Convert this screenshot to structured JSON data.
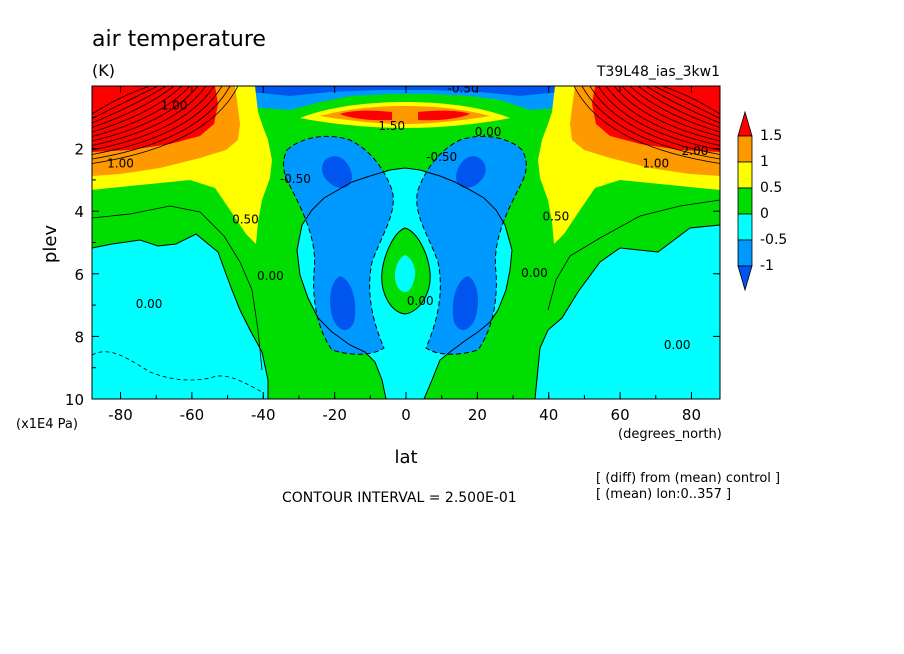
{
  "chart_data": {
    "type": "heatmap",
    "subtype": "filled-contour",
    "title": "air temperature",
    "units": "(K)",
    "run_label": "T39L48_ias_3kw1",
    "xlabel": "lat",
    "x_units": "(degrees_north)",
    "ylabel": "plev",
    "y_units": "(x1E4 Pa)",
    "xlim": [
      -88,
      88
    ],
    "ylim": [
      10,
      0
    ],
    "x_ticks": [
      "-80",
      "-60",
      "-40",
      "-20",
      "0",
      "20",
      "40",
      "60",
      "80"
    ],
    "y_ticks": [
      "2",
      "4",
      "6",
      "8",
      "10"
    ],
    "contour_interval_text": "CONTOUR INTERVAL = 2.500E-01",
    "notes": [
      "[ (diff) from (mean) control ]",
      "[ (mean) lon:0..357 ]"
    ],
    "colorbar": {
      "labels": [
        "1.5",
        "1",
        "0.5",
        "0",
        "-0.5",
        "-1"
      ],
      "colors": [
        "#ff0000",
        "#ff9900",
        "#ffff00",
        "#00dd00",
        "#00ffff",
        "#0099ff",
        "#0055ee"
      ]
    },
    "contour_labels": [
      {
        "text": "1.00",
        "lat": -80,
        "p": 2.6
      },
      {
        "text": "1.00",
        "lat": -65,
        "p": 0.75
      },
      {
        "text": "0.50",
        "lat": -45,
        "p": 4.4
      },
      {
        "text": "0.00",
        "lat": -72,
        "p": 7.1
      },
      {
        "text": "0.00",
        "lat": -38,
        "p": 6.2
      },
      {
        "text": "-0.50",
        "lat": -31,
        "p": 3.1
      },
      {
        "text": "1.50",
        "lat": -4,
        "p": 1.4
      },
      {
        "text": "-0.50",
        "lat": 10,
        "p": 2.4
      },
      {
        "text": "0.00",
        "lat": 23,
        "p": 1.6
      },
      {
        "text": "0.00",
        "lat": 4,
        "p": 7.0
      },
      {
        "text": "0.50",
        "lat": 42,
        "p": 4.3
      },
      {
        "text": "0.00",
        "lat": 36,
        "p": 6.1
      },
      {
        "text": "1.00",
        "lat": 70,
        "p": 2.6
      },
      {
        "text": "2.00",
        "lat": 81,
        "p": 2.2
      },
      {
        "text": "0.00",
        "lat": 76,
        "p": 8.4
      },
      {
        "text": "-0.50",
        "lat": 16,
        "p": 0.2
      }
    ]
  }
}
